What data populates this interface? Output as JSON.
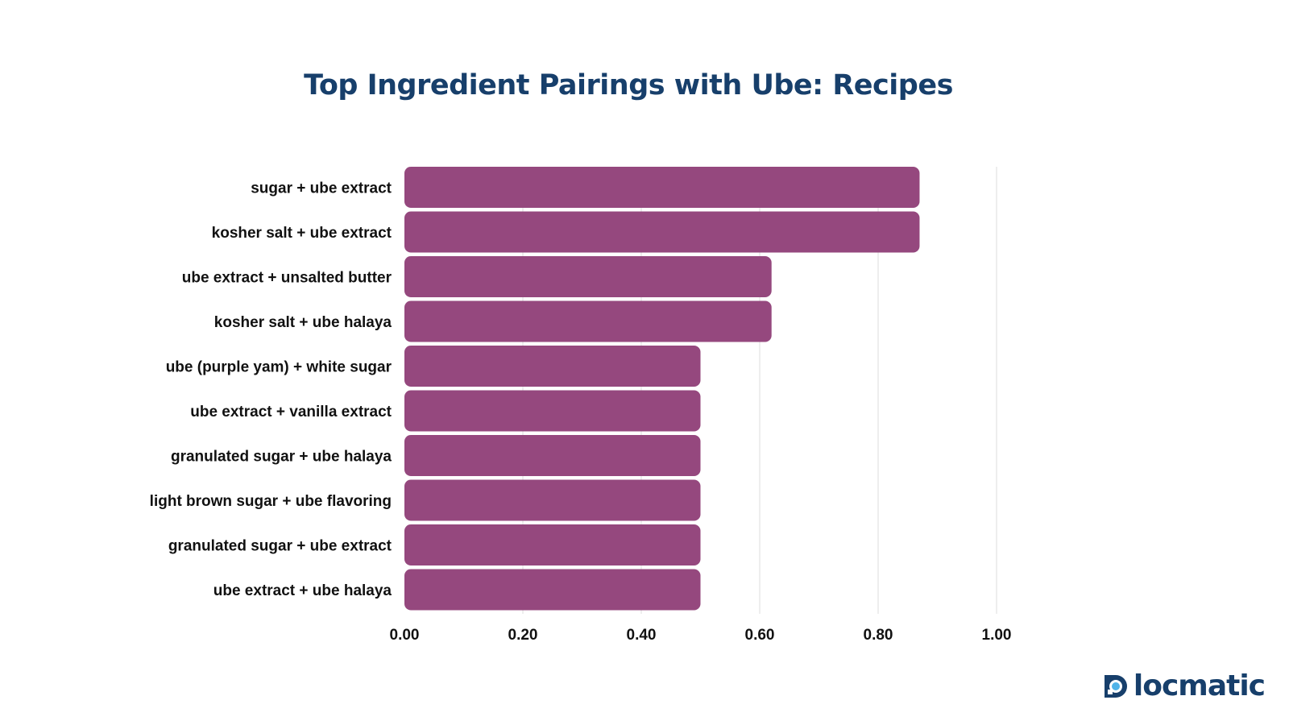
{
  "chart_data": {
    "type": "bar",
    "orientation": "horizontal",
    "title": "Top Ingredient Pairings with Ube:  Recipes",
    "categories": [
      "sugar + ube extract",
      "kosher salt + ube extract",
      "ube extract + unsalted butter",
      "kosher salt + ube halaya",
      "ube (purple yam) + white sugar",
      "ube extract + vanilla extract",
      "granulated sugar + ube halaya",
      "light brown sugar + ube flavoring",
      "granulated sugar + ube extract",
      "ube extract + ube halaya"
    ],
    "values": [
      0.87,
      0.87,
      0.62,
      0.62,
      0.5,
      0.5,
      0.5,
      0.5,
      0.5,
      0.5
    ],
    "xlim": [
      0,
      1.0
    ],
    "xticks": [
      "0.00",
      "0.20",
      "0.40",
      "0.60",
      "0.80",
      "1.00"
    ],
    "xlabel": "",
    "ylabel": "",
    "grid": "vertical",
    "bar_color": "#95487e"
  },
  "brand": {
    "logo_text": "locmatic",
    "color": "#173f6b",
    "accent": "#4fb3e8"
  }
}
